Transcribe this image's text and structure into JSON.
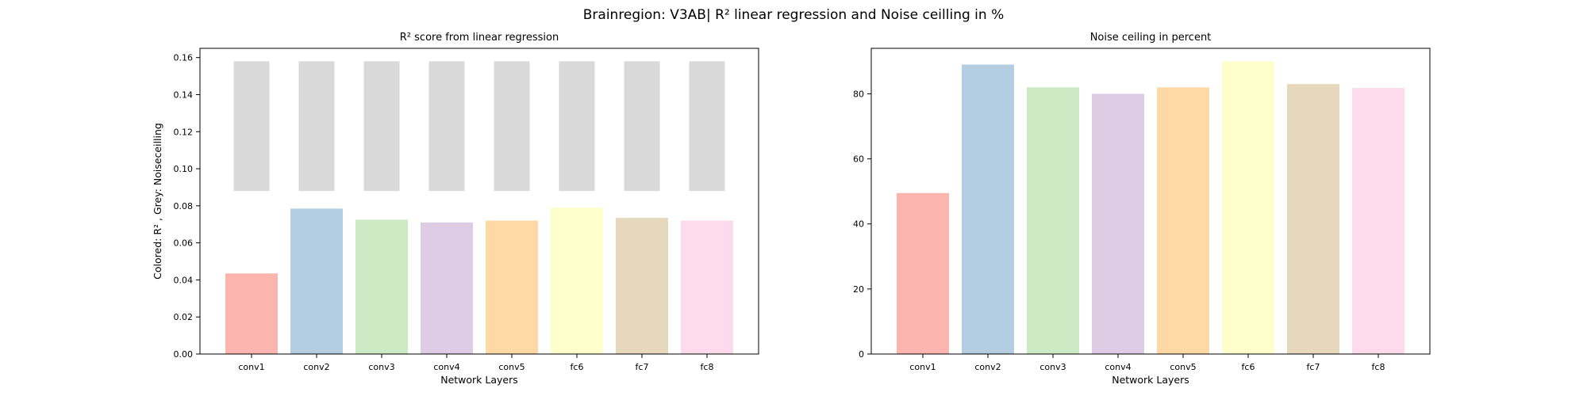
{
  "figure_title": "Brainregion: V3AB| R² linear regression and Noise ceilling in %",
  "colors": {
    "bars": [
      "#fbb4ae",
      "#b3cde3",
      "#ccebc5",
      "#decbe4",
      "#fed9a6",
      "#ffffcc",
      "#e5d8bd",
      "#fddaec"
    ],
    "noise_ceiling_bar": "#d9d9d9"
  },
  "chart_data": [
    {
      "type": "bar",
      "title": "R² score from linear regression",
      "xlabel": "Network Layers",
      "ylabel": "Colored: R² , Grey: Noiseceilling",
      "categories": [
        "conv1",
        "conv2",
        "conv3",
        "conv4",
        "conv5",
        "fc6",
        "fc7",
        "fc8"
      ],
      "ylim": [
        0,
        0.165
      ],
      "yticks": [
        0.0,
        0.02,
        0.04,
        0.06,
        0.08,
        0.1,
        0.12,
        0.14,
        0.16
      ],
      "ytick_labels": [
        "0.00",
        "0.02",
        "0.04",
        "0.06",
        "0.08",
        "0.10",
        "0.12",
        "0.14",
        "0.16"
      ],
      "grid": false,
      "series": [
        {
          "values": [
            0.0435,
            0.0785,
            0.0725,
            0.071,
            0.072,
            0.079,
            0.0735,
            0.072
          ]
        },
        {
          "bottom": [
            0.088,
            0.088,
            0.088,
            0.088,
            0.088,
            0.088,
            0.088,
            0.088
          ],
          "top": [
            0.158,
            0.158,
            0.158,
            0.158,
            0.158,
            0.158,
            0.158,
            0.158
          ]
        }
      ]
    },
    {
      "type": "bar",
      "title": "Noise ceiling in percent",
      "xlabel": "Network Layers",
      "ylabel": "",
      "categories": [
        "conv1",
        "conv2",
        "conv3",
        "conv4",
        "conv5",
        "fc6",
        "fc7",
        "fc8"
      ],
      "ylim": [
        0,
        94
      ],
      "yticks": [
        0,
        20,
        40,
        60,
        80
      ],
      "ytick_labels": [
        "0",
        "20",
        "40",
        "60",
        "80"
      ],
      "grid": false,
      "series": [
        {
          "values": [
            49.5,
            89.0,
            82.0,
            80.0,
            82.0,
            90.0,
            83.0,
            81.8
          ]
        }
      ]
    }
  ]
}
